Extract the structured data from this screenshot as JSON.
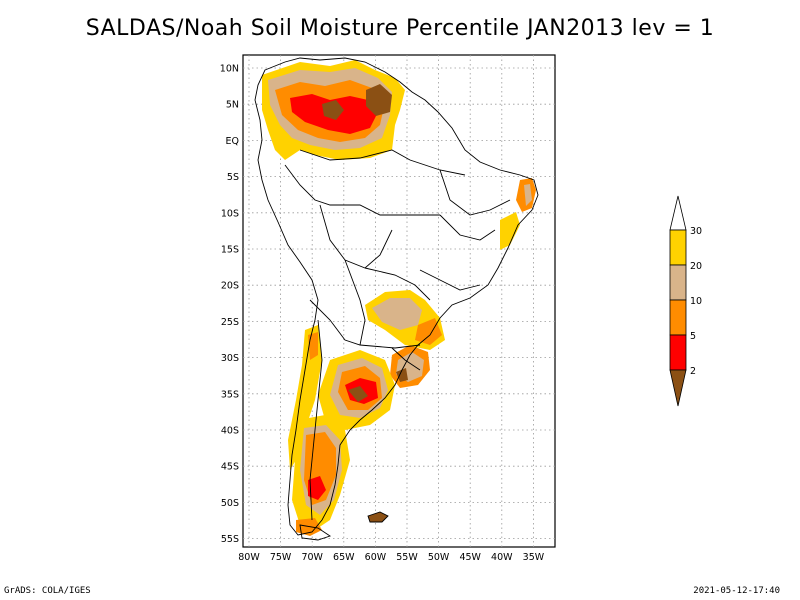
{
  "title": "SALDAS/Noah Soil Moisture Percentile JAN2013 lev = 1",
  "footer": {
    "left": "GrADS: COLA/IGES",
    "right": "2021-05-12-17:40"
  },
  "axes": {
    "lat_labels": [
      "10N",
      "5N",
      "EQ",
      "5S",
      "10S",
      "15S",
      "20S",
      "25S",
      "30S",
      "35S",
      "40S",
      "45S",
      "50S",
      "55S"
    ],
    "lon_labels": [
      "80W",
      "75W",
      "70W",
      "65W",
      "60W",
      "55W",
      "50W",
      "45W",
      "40W",
      "35W"
    ]
  },
  "legend": {
    "labels": [
      "30",
      "20",
      "10",
      "5",
      "2"
    ],
    "colors": [
      "#ffd200",
      "#d9b48a",
      "#ff8c00",
      "#ff0000",
      "#8b5014"
    ]
  },
  "map_colors": {
    "land_outline": "#000000",
    "gridline": "#9a9a9a",
    "p30": "#ffd200",
    "p20": "#d9b48a",
    "p10": "#ff8c00",
    "p5": "#ff0000",
    "p2": "#8b5014"
  }
}
